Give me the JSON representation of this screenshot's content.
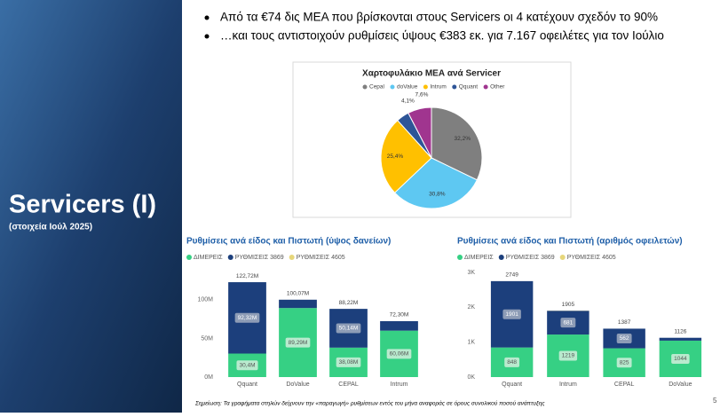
{
  "slide": {
    "title": "Servicers (I)",
    "subtitle": "(στοιχεία Ιούλ 2025)",
    "bullets": [
      "Από τα €74 δις ΜΕΑ που βρίσκονται στους Servicers οι 4 κατέχουν σχεδόν το 90%",
      "…και τους αντιστοιχούν ρυθμίσεις ύψους €383 εκ. για 7.167 οφειλέτες για τον Ιούλιο"
    ],
    "note": "Σημείωση: Τα γραφήματα στηλών δείχνουν την «παραγωγή» ρυθμίσεων εντός του μήνα αναφοράς σε όρους συνολικού ποσού ανάπτυξης",
    "page": "5"
  },
  "chart_data": [
    {
      "type": "pie",
      "title": "Χαρτοφυλάκιο ΜΕΑ ανά Servicer",
      "categories": [
        "Cepal",
        "doValue",
        "Intrum",
        "Qquant",
        "Other"
      ],
      "values": [
        32.2,
        30.8,
        25.4,
        4.1,
        7.6
      ],
      "value_labels": [
        "32,2%",
        "30,8%",
        "25,4%",
        "4,1%",
        "7,6%"
      ],
      "colors": [
        "#7f7f7f",
        "#5ec8f2",
        "#ffc000",
        "#2e5597",
        "#a0358f"
      ]
    },
    {
      "type": "stacked-bar",
      "title": "Ρυθμίσεις ανά είδος και Πιστωτή (ύψος δανείων)",
      "categories": [
        "Qquant",
        "DoValue",
        "CEPAL",
        "Intrum"
      ],
      "series": [
        {
          "name": "ΔΙΜΕΡΕΙΣ",
          "color": "#36d084",
          "values": [
            30.4,
            89.29,
            38.08,
            60.06
          ],
          "value_labels": [
            "30,4M",
            "89,29M",
            "38,08M",
            "60,06M"
          ]
        },
        {
          "name": "ΡΥΘΜΙΣΕΙΣ 3869",
          "color": "#1c3f7c",
          "values": [
            92.32,
            10.78,
            50.14,
            12.24
          ],
          "value_labels": [
            "92,32M",
            null,
            "50,14M",
            null
          ]
        },
        {
          "name": "ΡΥΘΜΙΣΕΙΣ 4605",
          "color": "#e6d67a",
          "values": [
            0,
            0,
            0,
            0
          ]
        }
      ],
      "totals": {
        "values": [
          122.72,
          100.07,
          88.22,
          72.3
        ],
        "value_labels": [
          "122,72M",
          "100,07M",
          "88,22M",
          "72,30M"
        ]
      },
      "ylim": [
        0,
        140
      ],
      "yticks": [
        {
          "value": 0,
          "label": "0M"
        },
        {
          "value": 50,
          "label": "50M"
        },
        {
          "value": 100,
          "label": "100M"
        }
      ]
    },
    {
      "type": "stacked-bar",
      "title": "Ρυθμίσεις ανά είδος και Πιστωτή (αριθμός οφειλετών)",
      "categories": [
        "Qquant",
        "Intrum",
        "CEPAL",
        "DoValue"
      ],
      "series": [
        {
          "name": "ΔΙΜΕΡΕΙΣ",
          "color": "#36d084",
          "values": [
            848,
            1219,
            825,
            1044
          ],
          "value_labels": [
            "848",
            "1219",
            "825",
            "1044"
          ]
        },
        {
          "name": "ΡΥΘΜΙΣΕΙΣ 3869",
          "color": "#1c3f7c",
          "values": [
            1901,
            681,
            562,
            82
          ],
          "value_labels": [
            "1901",
            "681",
            "562",
            null
          ]
        },
        {
          "name": "ΡΥΘΜΙΣΕΙΣ 4605",
          "color": "#e6d67a",
          "values": [
            0,
            5,
            0,
            0
          ]
        }
      ],
      "totals": {
        "values": [
          2749,
          1905,
          1387,
          1126
        ]
      },
      "ylim": [
        0,
        3000
      ],
      "yticks": [
        {
          "value": 0,
          "label": "0K"
        },
        {
          "value": 1000,
          "label": "1K"
        },
        {
          "value": 2000,
          "label": "2K"
        },
        {
          "value": 3000,
          "label": "3K"
        }
      ]
    }
  ]
}
